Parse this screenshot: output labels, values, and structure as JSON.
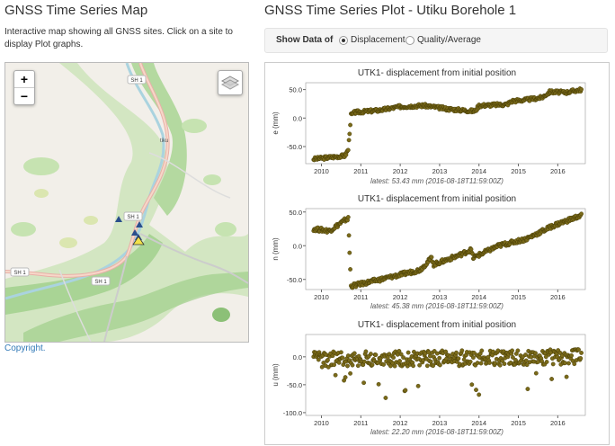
{
  "left": {
    "title": "GNSS Time Series Map",
    "description": "Interactive map showing all GNSS sites. Click on a site to display Plot graphs.",
    "copyright": "Copyright.",
    "zoom_in": "+",
    "zoom_out": "−",
    "map_labels": [
      "SH 1",
      "SH 1",
      "SH 1",
      "SH 1",
      "tiku"
    ]
  },
  "right": {
    "title": "GNSS Time Series Plot - Utiku Borehole 1",
    "show_label": "Show Data of",
    "options": [
      "Displacement",
      "Quality/Average"
    ],
    "selected": "Displacement"
  },
  "colors": {
    "point_fill": "#7a6a1a",
    "point_stroke": "#3b3200",
    "plot_bg": "#ffffff"
  },
  "chart_data": [
    {
      "type": "scatter",
      "title": "UTK1- displacement from initial position",
      "ylabel": "e (mm)",
      "latest": "latest: 53.43 mm (2016-08-18T11:59:00Z)",
      "xlim": [
        2009.6,
        2016.7
      ],
      "ylim": [
        -80,
        62
      ],
      "yticks": [
        50.0,
        0.0,
        -50.0
      ],
      "yticklabels": [
        "50.0",
        "0.0",
        "-50.0"
      ],
      "xticks": [
        2010,
        2011,
        2012,
        2013,
        2014,
        2015,
        2016
      ],
      "trend": [
        [
          2009.8,
          -72
        ],
        [
          2010.6,
          -66
        ],
        [
          2010.68,
          -55
        ],
        [
          2010.75,
          5
        ],
        [
          2010.85,
          10
        ],
        [
          2011.5,
          14
        ],
        [
          2012.0,
          20
        ],
        [
          2012.6,
          22
        ],
        [
          2013.2,
          16
        ],
        [
          2013.9,
          12
        ],
        [
          2014.0,
          22
        ],
        [
          2014.7,
          24
        ],
        [
          2014.85,
          30
        ],
        [
          2015.2,
          32
        ],
        [
          2015.6,
          36
        ],
        [
          2015.8,
          46
        ],
        [
          2016.2,
          45
        ],
        [
          2016.6,
          50
        ]
      ]
    },
    {
      "type": "scatter",
      "title": "UTK1- displacement from initial position",
      "ylabel": "n (mm)",
      "latest": "latest: 45.38 mm (2016-08-18T11:59:00Z)",
      "xlim": [
        2009.6,
        2016.7
      ],
      "ylim": [
        -65,
        55
      ],
      "yticks": [
        50.0,
        0.0,
        -50.0
      ],
      "yticklabels": [
        "50.0",
        "0.0",
        "-50.0"
      ],
      "xticks": [
        2010,
        2011,
        2012,
        2013,
        2014,
        2015,
        2016
      ],
      "trend": [
        [
          2009.8,
          25
        ],
        [
          2010.2,
          22
        ],
        [
          2010.6,
          38
        ],
        [
          2010.68,
          40
        ],
        [
          2010.75,
          -60
        ],
        [
          2010.9,
          -58
        ],
        [
          2011.5,
          -50
        ],
        [
          2012.5,
          -36
        ],
        [
          2012.8,
          -18
        ],
        [
          2012.85,
          -28
        ],
        [
          2013.5,
          -14
        ],
        [
          2013.8,
          -6
        ],
        [
          2013.85,
          -18
        ],
        [
          2014.5,
          0
        ],
        [
          2015.2,
          10
        ],
        [
          2015.9,
          30
        ],
        [
          2016.6,
          45
        ]
      ]
    },
    {
      "type": "scatter",
      "title": "UTK1- displacement from initial position",
      "ylabel": "u (mm)",
      "latest": "latest: 22.20 mm (2016-08-18T11:59:00Z)",
      "xlim": [
        2009.6,
        2016.7
      ],
      "ylim": [
        -105,
        40
      ],
      "yticks": [
        0.0,
        -50.0,
        -100.0
      ],
      "yticklabels": [
        "0.0",
        "-50.0",
        "-100.0"
      ],
      "xticks": [
        2010,
        2011,
        2012,
        2013,
        2014,
        2015,
        2016
      ],
      "trend": [
        [
          2009.8,
          -5
        ],
        [
          2016.6,
          0
        ]
      ]
    }
  ]
}
